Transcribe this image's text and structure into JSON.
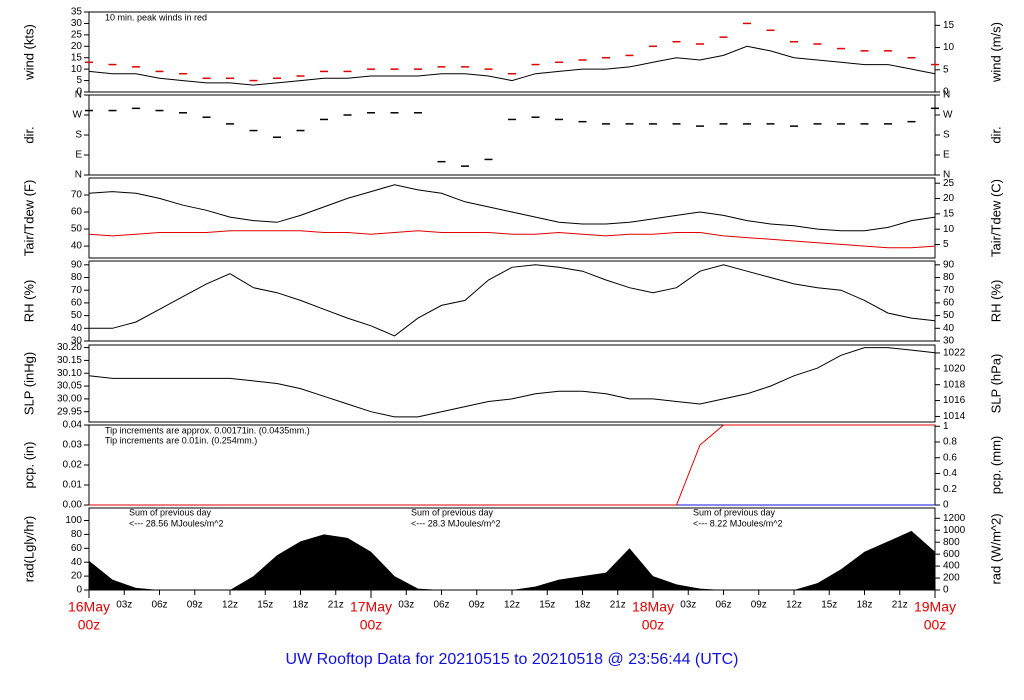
{
  "title": "UW Rooftop Data for 20210515  to  20210518 @ 23:56:44  (UTC)",
  "xlim": [
    0,
    72
  ],
  "x": [
    0,
    2,
    4,
    6,
    8,
    10,
    12,
    14,
    16,
    18,
    20,
    22,
    24,
    26,
    28,
    30,
    32,
    34,
    36,
    38,
    40,
    42,
    44,
    46,
    48,
    50,
    52,
    54,
    56,
    58,
    60,
    62,
    64,
    66,
    68,
    70,
    72
  ],
  "xticks": [
    {
      "value": 3,
      "label": "03z"
    },
    {
      "value": 6,
      "label": "06z"
    },
    {
      "value": 9,
      "label": "09z"
    },
    {
      "value": 12,
      "label": "12z"
    },
    {
      "value": 15,
      "label": "15z"
    },
    {
      "value": 18,
      "label": "18z"
    },
    {
      "value": 21,
      "label": "21z"
    },
    {
      "value": 27,
      "label": "03z"
    },
    {
      "value": 30,
      "label": "06z"
    },
    {
      "value": 33,
      "label": "09z"
    },
    {
      "value": 36,
      "label": "12z"
    },
    {
      "value": 39,
      "label": "15z"
    },
    {
      "value": 42,
      "label": "18z"
    },
    {
      "value": 45,
      "label": "21z"
    },
    {
      "value": 51,
      "label": "03z"
    },
    {
      "value": 54,
      "label": "06z"
    },
    {
      "value": 57,
      "label": "09z"
    },
    {
      "value": 60,
      "label": "12z"
    },
    {
      "value": 63,
      "label": "15z"
    },
    {
      "value": 66,
      "label": "18z"
    },
    {
      "value": 69,
      "label": "21z"
    }
  ],
  "day_ticks": [
    {
      "value": 0,
      "label": "16May"
    },
    {
      "value": 24,
      "label": "17May"
    },
    {
      "value": 48,
      "label": "18May"
    },
    {
      "value": 72,
      "label": "19May"
    }
  ],
  "day_tick_sublabel": "00z",
  "chart_data": [
    {
      "type": "line",
      "ylabel": "wind (kts)",
      "y2label": "wind (m/s)",
      "ylim": [
        0,
        35
      ],
      "yticks": [
        0,
        5,
        10,
        15,
        20,
        25,
        30,
        35
      ],
      "y2lim": [
        0,
        18
      ],
      "y2ticks": [
        0,
        5,
        10,
        15
      ],
      "annotations": [
        {
          "text": "10 min. peak winds in red",
          "color": "#e00000"
        }
      ],
      "series": [
        {
          "color": "#e00000",
          "mark": "dash",
          "values": [
            13,
            12,
            11,
            9,
            8,
            6,
            6,
            5,
            6,
            7,
            9,
            9,
            10,
            10,
            10,
            11,
            11,
            10,
            8,
            12,
            13,
            14,
            15,
            16,
            20,
            22,
            21,
            24,
            30,
            27,
            22,
            21,
            19,
            18,
            18,
            15,
            12
          ]
        },
        {
          "color": "#000000",
          "mark": "line",
          "values": [
            9,
            8,
            8,
            6,
            5,
            4,
            4,
            3,
            4,
            5,
            6,
            6,
            7,
            7,
            7,
            8,
            8,
            7,
            5,
            8,
            9,
            10,
            10,
            11,
            13,
            15,
            14,
            16,
            20,
            18,
            15,
            14,
            13,
            12,
            12,
            10,
            8
          ]
        }
      ]
    },
    {
      "type": "scatter",
      "ylabel": "dir.",
      "y2label": "dir.",
      "ylim": [
        0,
        360
      ],
      "yticks": [
        {
          "value": 0,
          "label": "N"
        },
        {
          "value": 90,
          "label": "E"
        },
        {
          "value": 180,
          "label": "S"
        },
        {
          "value": 270,
          "label": "W"
        },
        {
          "value": 360,
          "label": "N"
        }
      ],
      "series": [
        {
          "color": "#000000",
          "mark": "dash",
          "values": [
            290,
            290,
            300,
            290,
            280,
            260,
            230,
            200,
            170,
            200,
            250,
            270,
            280,
            280,
            280,
            60,
            40,
            70,
            250,
            260,
            250,
            240,
            230,
            230,
            230,
            230,
            220,
            230,
            230,
            230,
            220,
            230,
            230,
            230,
            230,
            240,
            300
          ]
        }
      ]
    },
    {
      "type": "line",
      "ylabel": "Tair/Tdew (F)",
      "y2label": "Tair/Tdew (C)",
      "ylim": [
        33,
        80
      ],
      "yticks": [
        40,
        50,
        60,
        70
      ],
      "y2lim": [
        0.6,
        26.7
      ],
      "y2ticks": [
        5,
        10,
        15,
        20,
        25
      ],
      "series": [
        {
          "color": "#000000",
          "mark": "line",
          "values": [
            71,
            72,
            71,
            68,
            64,
            61,
            57,
            55,
            54,
            58,
            63,
            68,
            72,
            76,
            73,
            71,
            66,
            63,
            60,
            57,
            54,
            53,
            53,
            54,
            56,
            58,
            60,
            58,
            55,
            53,
            52,
            50,
            49,
            49,
            51,
            55,
            57
          ]
        },
        {
          "color": "#e00000",
          "mark": "line",
          "values": [
            47,
            46,
            47,
            48,
            48,
            48,
            49,
            49,
            49,
            49,
            48,
            48,
            47,
            48,
            49,
            48,
            48,
            48,
            47,
            47,
            48,
            47,
            46,
            47,
            47,
            48,
            48,
            46,
            45,
            44,
            43,
            42,
            41,
            40,
            39,
            39,
            40
          ]
        }
      ]
    },
    {
      "type": "line",
      "ylabel": "RH (%)",
      "y2label": "RH (%)",
      "ylim": [
        30,
        93
      ],
      "yticks": [
        30,
        40,
        50,
        60,
        70,
        80,
        90
      ],
      "y2lim": [
        30,
        93
      ],
      "y2ticks": [
        30,
        40,
        50,
        60,
        70,
        80,
        90
      ],
      "series": [
        {
          "color": "#000000",
          "mark": "line",
          "values": [
            40,
            40,
            45,
            55,
            65,
            75,
            83,
            72,
            68,
            62,
            55,
            48,
            42,
            34,
            48,
            58,
            62,
            78,
            88,
            90,
            88,
            85,
            78,
            72,
            68,
            72,
            85,
            90,
            85,
            80,
            75,
            72,
            70,
            62,
            52,
            48,
            46
          ]
        }
      ]
    },
    {
      "type": "line",
      "ylabel": "SLP (inHg)",
      "y2label": "SLP (hPa)",
      "ylim": [
        29.91,
        30.21
      ],
      "yticks": [
        29.95,
        {
          "value": 30,
          "label": "30.00"
        },
        30.05,
        {
          "value": 30.1,
          "label": "30.10"
        },
        30.15,
        {
          "value": 30.2,
          "label": "30.20"
        }
      ],
      "y2lim": [
        1013.3,
        1023
      ],
      "y2ticks": [
        1014,
        1016,
        1018,
        1020,
        1022
      ],
      "series": [
        {
          "color": "#000000",
          "mark": "line",
          "values": [
            30.09,
            30.08,
            30.08,
            30.08,
            30.08,
            30.08,
            30.08,
            30.07,
            30.06,
            30.04,
            30.01,
            29.98,
            29.95,
            29.93,
            29.93,
            29.95,
            29.97,
            29.99,
            30.0,
            30.02,
            30.03,
            30.03,
            30.02,
            30.0,
            30.0,
            29.99,
            29.98,
            30.0,
            30.02,
            30.05,
            30.09,
            30.12,
            30.17,
            30.2,
            30.2,
            30.19,
            30.18
          ]
        }
      ]
    },
    {
      "type": "line",
      "ylabel": "pcp. (in)",
      "y2label": "pcp. (mm)",
      "ylim": [
        0,
        0.04
      ],
      "yticks": [
        {
          "value": 0,
          "label": "0.00"
        },
        0.01,
        0.02,
        0.03,
        0.04
      ],
      "y2lim": [
        0,
        1.016
      ],
      "y2ticks": [
        0,
        0.2,
        0.4,
        0.6,
        0.8,
        1
      ],
      "annotations": [
        {
          "text": "Tip increments are approx. 0.00171in. (0.0435mm.)",
          "color": "#e00000"
        },
        {
          "text": "Tip increments are 0.01in. (0.254mm.)",
          "color": "#1010e0"
        }
      ],
      "series": [
        {
          "color": "#1010e0",
          "mark": "line",
          "values": [
            0,
            0,
            0,
            0,
            0,
            0,
            0,
            0,
            0,
            0,
            0,
            0,
            0,
            0,
            0,
            0,
            0,
            0,
            0,
            0,
            0,
            0,
            0,
            0,
            0,
            0,
            0,
            0,
            0,
            0,
            0,
            0,
            0,
            0,
            0,
            0,
            0
          ]
        },
        {
          "color": "#e00000",
          "mark": "line",
          "values": [
            0,
            0,
            0,
            0,
            0,
            0,
            0,
            0,
            0,
            0,
            0,
            0,
            0,
            0,
            0,
            0,
            0,
            0,
            0,
            0,
            0,
            0,
            0,
            0,
            0,
            0,
            0.03,
            0.04,
            0.04,
            0.04,
            0.04,
            0.04,
            0.04,
            0.04,
            0.04,
            0.04,
            0.04
          ]
        }
      ]
    },
    {
      "type": "area",
      "ylabel": "rad(Lgly/hr)",
      "y2label": "rad (W/m^2)",
      "ylim": [
        0,
        118
      ],
      "yticks": [
        0,
        20,
        40,
        60,
        80,
        100
      ],
      "y2lim": [
        0,
        1372
      ],
      "y2ticks": [
        0,
        200,
        400,
        600,
        800,
        1000,
        1200
      ],
      "annotations": [
        {
          "text": "Sum of previous day",
          "color": "#a020f0"
        },
        {
          "text": "<--- 28.56 MJoules/m^2",
          "color": "#a020f0"
        },
        {
          "text": "Sum of previous day",
          "color": "#a020f0"
        },
        {
          "text": "<--- 28.3 MJoules/m^2",
          "color": "#a020f0"
        },
        {
          "text": "Sum of previous day",
          "color": "#a020f0"
        },
        {
          "text": "<--- 8.22 MJoules/m^2",
          "color": "#a020f0"
        }
      ],
      "series": [
        {
          "color": "#000000",
          "mark": "area",
          "values": [
            42,
            15,
            3,
            0,
            0,
            0,
            0,
            20,
            50,
            70,
            80,
            75,
            55,
            20,
            2,
            0,
            0,
            0,
            0,
            5,
            15,
            20,
            25,
            60,
            20,
            8,
            2,
            0,
            0,
            0,
            0,
            10,
            30,
            55,
            70,
            85,
            55
          ]
        }
      ]
    }
  ]
}
